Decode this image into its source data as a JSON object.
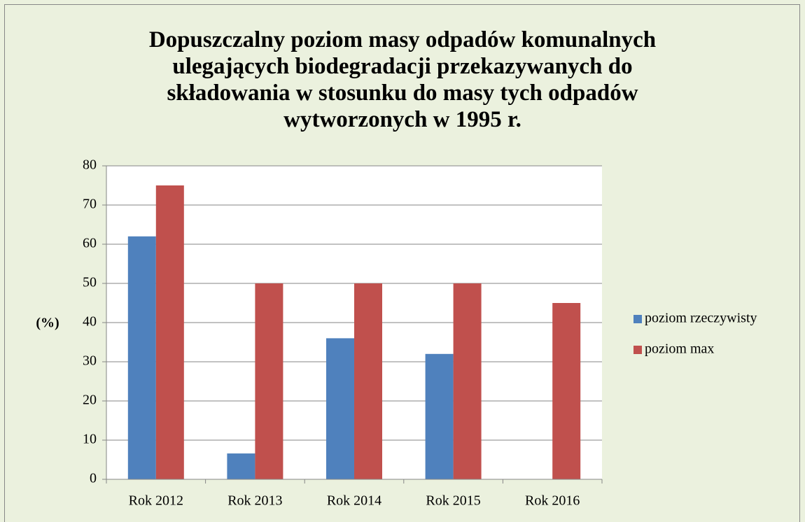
{
  "chart_data": {
    "type": "bar",
    "title": "Dopuszczalny poziom masy odpadów komunalnych ulegających biodegradacji przekazywanych do składowania w stosunku do masy tych odpadów wytworzonych w 1995 r.",
    "y_label": "(%)",
    "categories": [
      "Rok 2012",
      "Rok 2013",
      "Rok 2014",
      "Rok 2015",
      "Rok 2016"
    ],
    "series": [
      {
        "name": "poziom rzeczywisty",
        "color": "#4f81bd",
        "values": [
          62,
          6.6,
          36,
          32,
          null
        ]
      },
      {
        "name": "poziom max",
        "color": "#c0504d",
        "values": [
          75,
          50,
          50,
          50,
          45
        ]
      }
    ],
    "ylim": [
      0,
      80
    ],
    "yticks": [
      0,
      10,
      20,
      30,
      40,
      50,
      60,
      70,
      80
    ],
    "grid": true,
    "legend": "right"
  }
}
